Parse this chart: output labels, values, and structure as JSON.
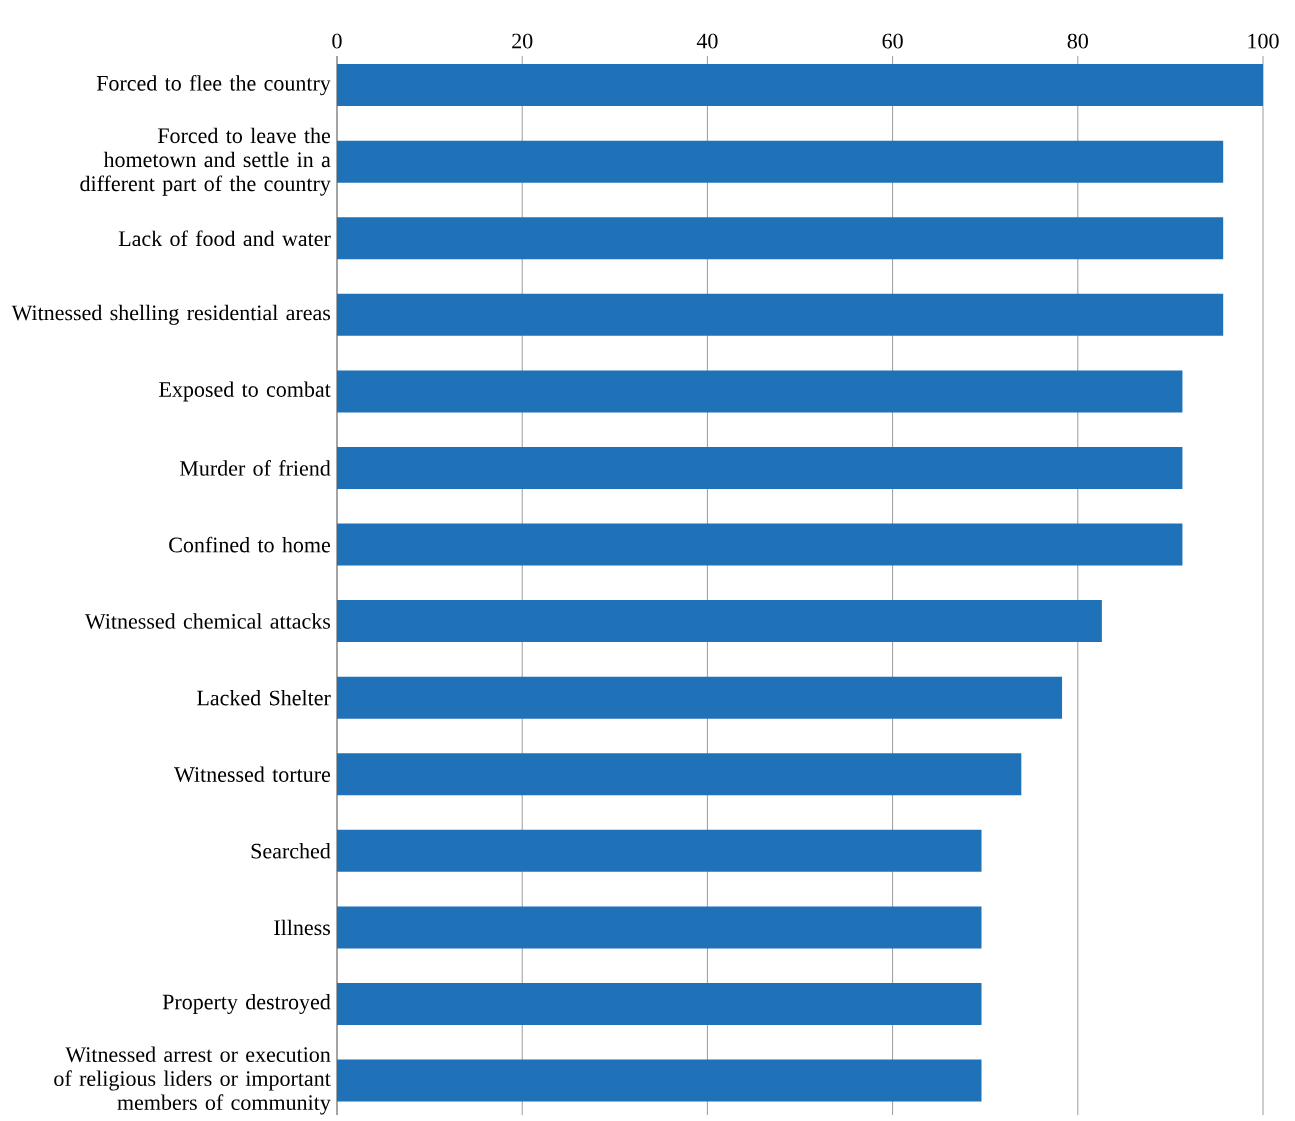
{
  "chart_data": {
    "type": "bar",
    "orientation": "horizontal",
    "categories": [
      "Forced to flee the country",
      "Forced to leave the hometown and settle in a different part of the country",
      "Lack of food and water",
      "Witnessed shelling residential areas",
      "Exposed to combat",
      "Murder of friend",
      "Confined to home",
      "Witnessed chemical attacks",
      "Lacked Shelter",
      "Witnessed torture",
      "Searched",
      "Illness",
      "Property destroyed",
      "Witnessed arrest or execution of religious liders or important members of community"
    ],
    "values": [
      100,
      95.7,
      95.7,
      95.7,
      91.3,
      91.3,
      91.3,
      82.6,
      78.3,
      73.9,
      69.6,
      69.6,
      69.6,
      69.6
    ],
    "color": "#1f72b8",
    "xlim": [
      0,
      100
    ],
    "xticks": [
      0,
      20,
      40,
      60,
      80,
      100
    ],
    "grid": "x"
  }
}
